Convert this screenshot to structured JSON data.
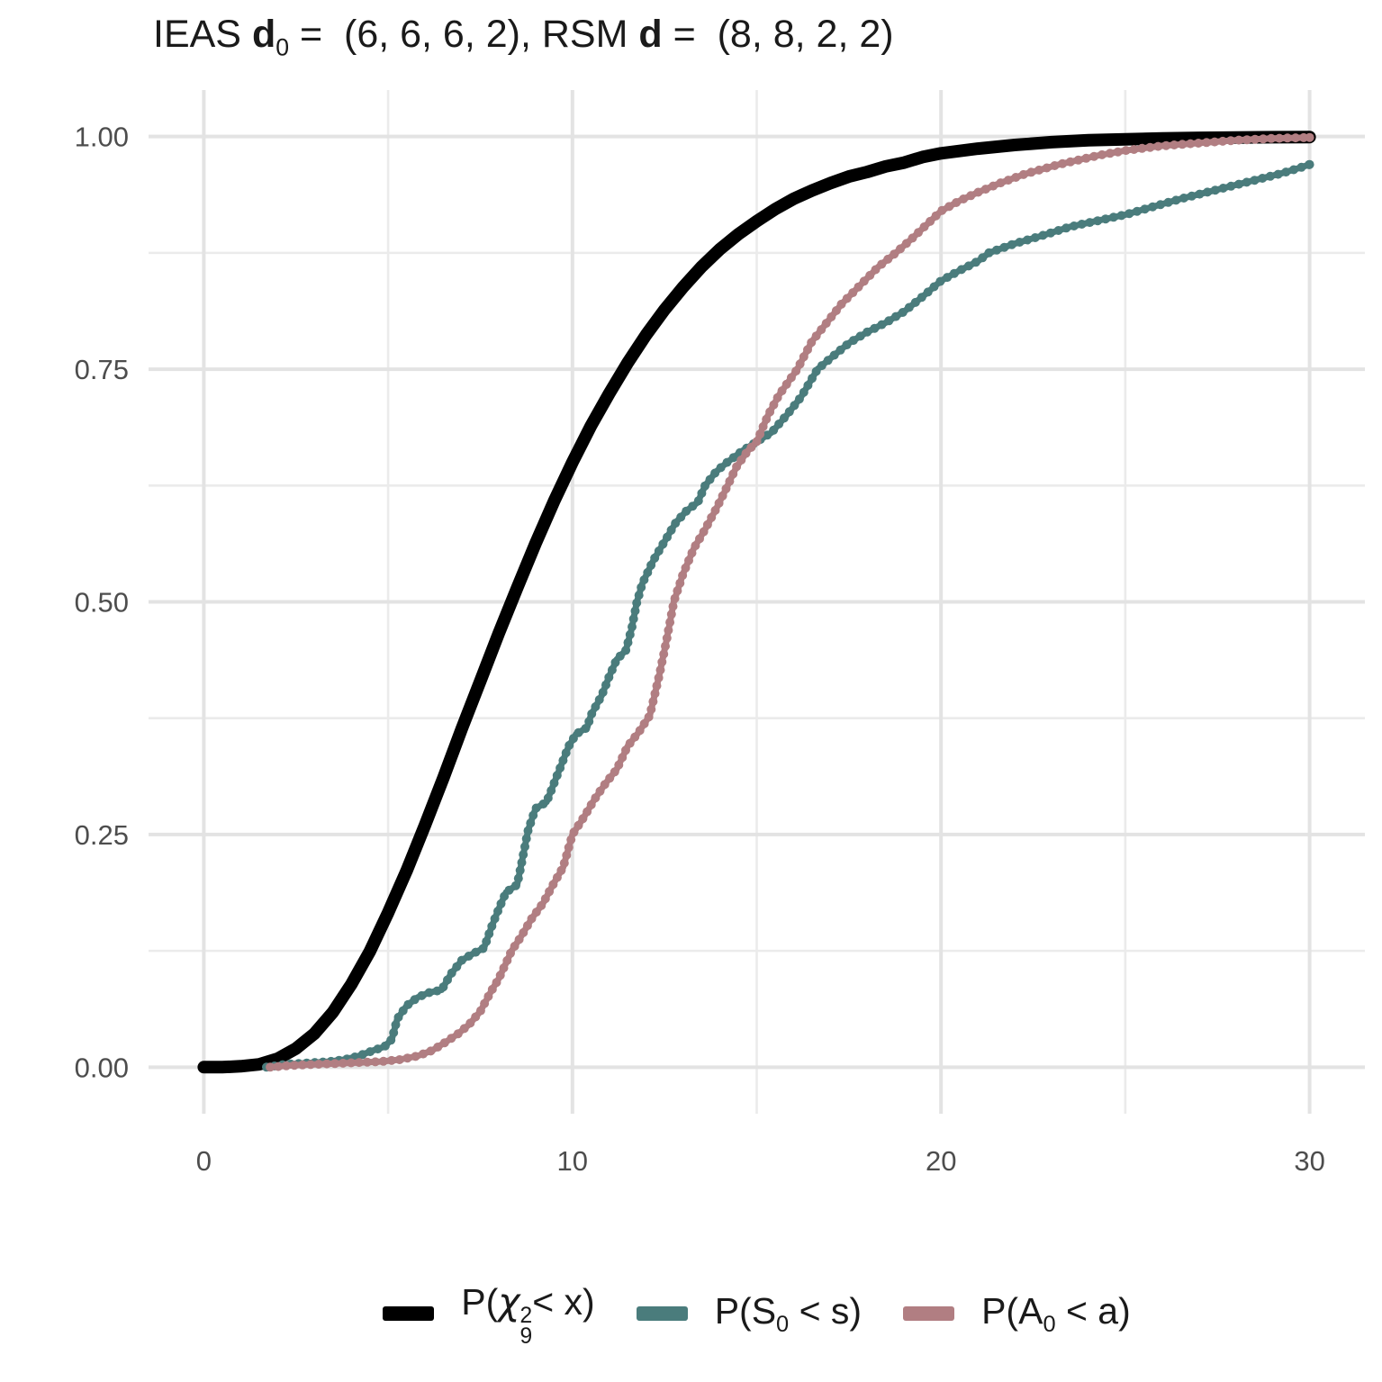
{
  "title": {
    "text": "IEAS d0 =  (6, 6, 6, 2), RSM d =  (8, 8, 2, 2)",
    "parts": [
      {
        "t": "IEAS "
      },
      {
        "t": "d",
        "b": true
      },
      {
        "t": "0",
        "sub": true
      },
      {
        "t": " =  (6, 6, 6, 2), RSM "
      },
      {
        "t": "d",
        "b": true
      },
      {
        "t": " =  (8, 8, 2, 2)"
      }
    ]
  },
  "legend": {
    "position": "bottom-center",
    "items": [
      {
        "name": "chi-squared-9-cdf",
        "color": "#000000",
        "label": "P(chi^2_9 < x)",
        "parts": [
          {
            "t": "P("
          },
          {
            "t": "χ",
            "it": true
          },
          {
            "stack": [
              "2",
              "9"
            ]
          },
          {
            "t": "< x)"
          }
        ]
      },
      {
        "name": "S0-ecdf",
        "color": "#4a7c7c",
        "label": "P(S_0 < s)",
        "parts": [
          {
            "t": "P(S"
          },
          {
            "t": "0",
            "sub": true
          },
          {
            "t": " < s)"
          }
        ]
      },
      {
        "name": "A0-ecdf",
        "color": "#b17e82",
        "label": "P(A_0 < a)",
        "parts": [
          {
            "t": "P(A"
          },
          {
            "t": "0",
            "sub": true
          },
          {
            "t": " < a)"
          }
        ]
      }
    ]
  },
  "chart_data": {
    "type": "line",
    "title": "IEAS d0 = (6, 6, 6, 2), RSM d = (8, 8, 2, 2)",
    "xlabel": "",
    "ylabel": "",
    "xlim": [
      0,
      30
    ],
    "ylim": [
      0,
      1
    ],
    "grid": true,
    "grid_color_major": "#e3e3e3",
    "grid_color_minor": "#ebebeb",
    "tick_label_color": "#4d4d4d",
    "x_ticks": [
      {
        "v": 0,
        "label": "0"
      },
      {
        "v": 10,
        "label": "10"
      },
      {
        "v": 20,
        "label": "20"
      },
      {
        "v": 30,
        "label": "30"
      }
    ],
    "y_ticks": [
      {
        "v": 0,
        "label": "0.00"
      },
      {
        "v": 0.25,
        "label": "0.25"
      },
      {
        "v": 0.5,
        "label": "0.50"
      },
      {
        "v": 0.75,
        "label": "0.75"
      },
      {
        "v": 1,
        "label": "1.00"
      }
    ],
    "x_minor": [
      5,
      15,
      25
    ],
    "y_minor": [
      0.125,
      0.375,
      0.625,
      0.875
    ],
    "series": [
      {
        "name": "chi-squared-9-cdf",
        "legend": "P(chi^2_9 < x)",
        "color": "#000000",
        "style": "line",
        "stroke_width": 14,
        "points": [
          [
            0,
            0
          ],
          [
            0.5,
            0
          ],
          [
            1,
            0.001
          ],
          [
            1.5,
            0.003
          ],
          [
            2,
            0.009
          ],
          [
            2.5,
            0.02
          ],
          [
            3,
            0.036
          ],
          [
            3.5,
            0.059
          ],
          [
            4,
            0.089
          ],
          [
            4.5,
            0.124
          ],
          [
            5,
            0.166
          ],
          [
            5.5,
            0.211
          ],
          [
            6,
            0.26
          ],
          [
            6.5,
            0.311
          ],
          [
            7,
            0.364
          ],
          [
            7.5,
            0.415
          ],
          [
            8,
            0.466
          ],
          [
            8.5,
            0.515
          ],
          [
            9,
            0.563
          ],
          [
            9.5,
            0.608
          ],
          [
            10,
            0.65
          ],
          [
            10.5,
            0.689
          ],
          [
            11,
            0.724
          ],
          [
            11.5,
            0.757
          ],
          [
            12,
            0.787
          ],
          [
            12.5,
            0.814
          ],
          [
            13,
            0.838
          ],
          [
            13.5,
            0.86
          ],
          [
            14,
            0.879
          ],
          [
            14.5,
            0.895
          ],
          [
            15,
            0.909
          ],
          [
            15.5,
            0.922
          ],
          [
            16,
            0.933
          ],
          [
            16.5,
            0.942
          ],
          [
            17,
            0.95
          ],
          [
            17.5,
            0.957
          ],
          [
            18,
            0.962
          ],
          [
            18.5,
            0.968
          ],
          [
            19,
            0.972
          ],
          [
            19.5,
            0.978
          ],
          [
            20,
            0.982
          ],
          [
            21,
            0.987
          ],
          [
            22,
            0.991
          ],
          [
            23,
            0.994
          ],
          [
            24,
            0.996
          ],
          [
            25,
            0.997
          ],
          [
            26,
            0.998
          ],
          [
            27,
            0.9986
          ],
          [
            28,
            0.999
          ],
          [
            29,
            0.9993
          ],
          [
            30,
            0.9995
          ]
        ]
      },
      {
        "name": "S0-ecdf",
        "legend": "P(S_0 < s)",
        "color": "#4a7c7c",
        "style": "beaded",
        "stroke_width": 7,
        "dot_radius": 5,
        "points": [
          [
            1.7,
            0
          ],
          [
            2.2,
            0.003
          ],
          [
            2.6,
            0.004
          ],
          [
            3,
            0.005
          ],
          [
            3.4,
            0.006
          ],
          [
            3.8,
            0.008
          ],
          [
            4.2,
            0.012
          ],
          [
            4.6,
            0.018
          ],
          [
            4.9,
            0.022
          ],
          [
            5.1,
            0.03
          ],
          [
            5.25,
            0.052
          ],
          [
            5.5,
            0.066
          ],
          [
            5.8,
            0.075
          ],
          [
            6.1,
            0.08
          ],
          [
            6.45,
            0.083
          ],
          [
            6.7,
            0.1
          ],
          [
            7,
            0.115
          ],
          [
            7.3,
            0.122
          ],
          [
            7.6,
            0.128
          ],
          [
            7.8,
            0.15
          ],
          [
            8,
            0.17
          ],
          [
            8.2,
            0.188
          ],
          [
            8.5,
            0.196
          ],
          [
            8.65,
            0.225
          ],
          [
            8.8,
            0.255
          ],
          [
            9,
            0.278
          ],
          [
            9.3,
            0.285
          ],
          [
            9.5,
            0.305
          ],
          [
            9.7,
            0.325
          ],
          [
            9.9,
            0.345
          ],
          [
            10.1,
            0.358
          ],
          [
            10.4,
            0.365
          ],
          [
            10.5,
            0.378
          ],
          [
            10.8,
            0.4
          ],
          [
            11,
            0.42
          ],
          [
            11.2,
            0.438
          ],
          [
            11.45,
            0.448
          ],
          [
            11.6,
            0.47
          ],
          [
            11.75,
            0.5
          ],
          [
            11.9,
            0.52
          ],
          [
            12.2,
            0.545
          ],
          [
            12.5,
            0.565
          ],
          [
            12.8,
            0.585
          ],
          [
            13.1,
            0.598
          ],
          [
            13.4,
            0.607
          ],
          [
            13.6,
            0.625
          ],
          [
            13.9,
            0.64
          ],
          [
            14.2,
            0.65
          ],
          [
            14.6,
            0.662
          ],
          [
            15,
            0.672
          ],
          [
            15.4,
            0.682
          ],
          [
            15.8,
            0.7
          ],
          [
            16.2,
            0.72
          ],
          [
            16.65,
            0.75
          ],
          [
            17.1,
            0.765
          ],
          [
            17.5,
            0.778
          ],
          [
            18,
            0.79
          ],
          [
            18.5,
            0.8
          ],
          [
            19,
            0.812
          ],
          [
            19.5,
            0.828
          ],
          [
            20,
            0.845
          ],
          [
            20.5,
            0.856
          ],
          [
            21,
            0.866
          ],
          [
            21.3,
            0.875
          ],
          [
            22,
            0.885
          ],
          [
            22.7,
            0.893
          ],
          [
            23.5,
            0.903
          ],
          [
            24.3,
            0.91
          ],
          [
            25,
            0.916
          ],
          [
            25.7,
            0.924
          ],
          [
            26.5,
            0.933
          ],
          [
            27.3,
            0.941
          ],
          [
            28,
            0.948
          ],
          [
            28.6,
            0.954
          ],
          [
            29.2,
            0.96
          ],
          [
            29.7,
            0.966
          ],
          [
            30,
            0.97
          ]
        ]
      },
      {
        "name": "A0-ecdf",
        "legend": "P(A_0 < a)",
        "color": "#b17e82",
        "style": "beaded",
        "stroke_width": 7,
        "dot_radius": 5,
        "points": [
          [
            1.8,
            0
          ],
          [
            2.4,
            0.002
          ],
          [
            3,
            0.003
          ],
          [
            3.6,
            0.004
          ],
          [
            4.2,
            0.005
          ],
          [
            4.8,
            0.006
          ],
          [
            5.3,
            0.008
          ],
          [
            5.8,
            0.012
          ],
          [
            6.2,
            0.018
          ],
          [
            6.6,
            0.028
          ],
          [
            6.9,
            0.036
          ],
          [
            7.2,
            0.046
          ],
          [
            7.5,
            0.06
          ],
          [
            7.8,
            0.082
          ],
          [
            8,
            0.095
          ],
          [
            8.2,
            0.112
          ],
          [
            8.35,
            0.125
          ],
          [
            8.6,
            0.14
          ],
          [
            8.9,
            0.16
          ],
          [
            9.2,
            0.176
          ],
          [
            9.5,
            0.198
          ],
          [
            9.75,
            0.215
          ],
          [
            10,
            0.25
          ],
          [
            10.3,
            0.268
          ],
          [
            10.6,
            0.288
          ],
          [
            10.9,
            0.305
          ],
          [
            11.2,
            0.32
          ],
          [
            11.5,
            0.345
          ],
          [
            11.8,
            0.36
          ],
          [
            12.1,
            0.378
          ],
          [
            12.35,
            0.42
          ],
          [
            12.55,
            0.458
          ],
          [
            12.75,
            0.5
          ],
          [
            13,
            0.53
          ],
          [
            13.3,
            0.558
          ],
          [
            13.6,
            0.578
          ],
          [
            13.9,
            0.6
          ],
          [
            14.15,
            0.62
          ],
          [
            14.45,
            0.645
          ],
          [
            14.75,
            0.662
          ],
          [
            15,
            0.672
          ],
          [
            15.3,
            0.7
          ],
          [
            15.6,
            0.722
          ],
          [
            16.1,
            0.75
          ],
          [
            16.5,
            0.78
          ],
          [
            16.9,
            0.8
          ],
          [
            17.3,
            0.82
          ],
          [
            17.8,
            0.84
          ],
          [
            18.3,
            0.86
          ],
          [
            18.8,
            0.876
          ],
          [
            19.2,
            0.89
          ],
          [
            19.6,
            0.905
          ],
          [
            20,
            0.92
          ],
          [
            20.5,
            0.931
          ],
          [
            21,
            0.94
          ],
          [
            21.6,
            0.95
          ],
          [
            22.3,
            0.96
          ],
          [
            23.2,
            0.97
          ],
          [
            24.3,
            0.98
          ],
          [
            25,
            0.985
          ],
          [
            26,
            0.99
          ],
          [
            27,
            0.993
          ],
          [
            28,
            0.996
          ],
          [
            29,
            0.998
          ],
          [
            30,
            0.999
          ]
        ]
      }
    ]
  }
}
